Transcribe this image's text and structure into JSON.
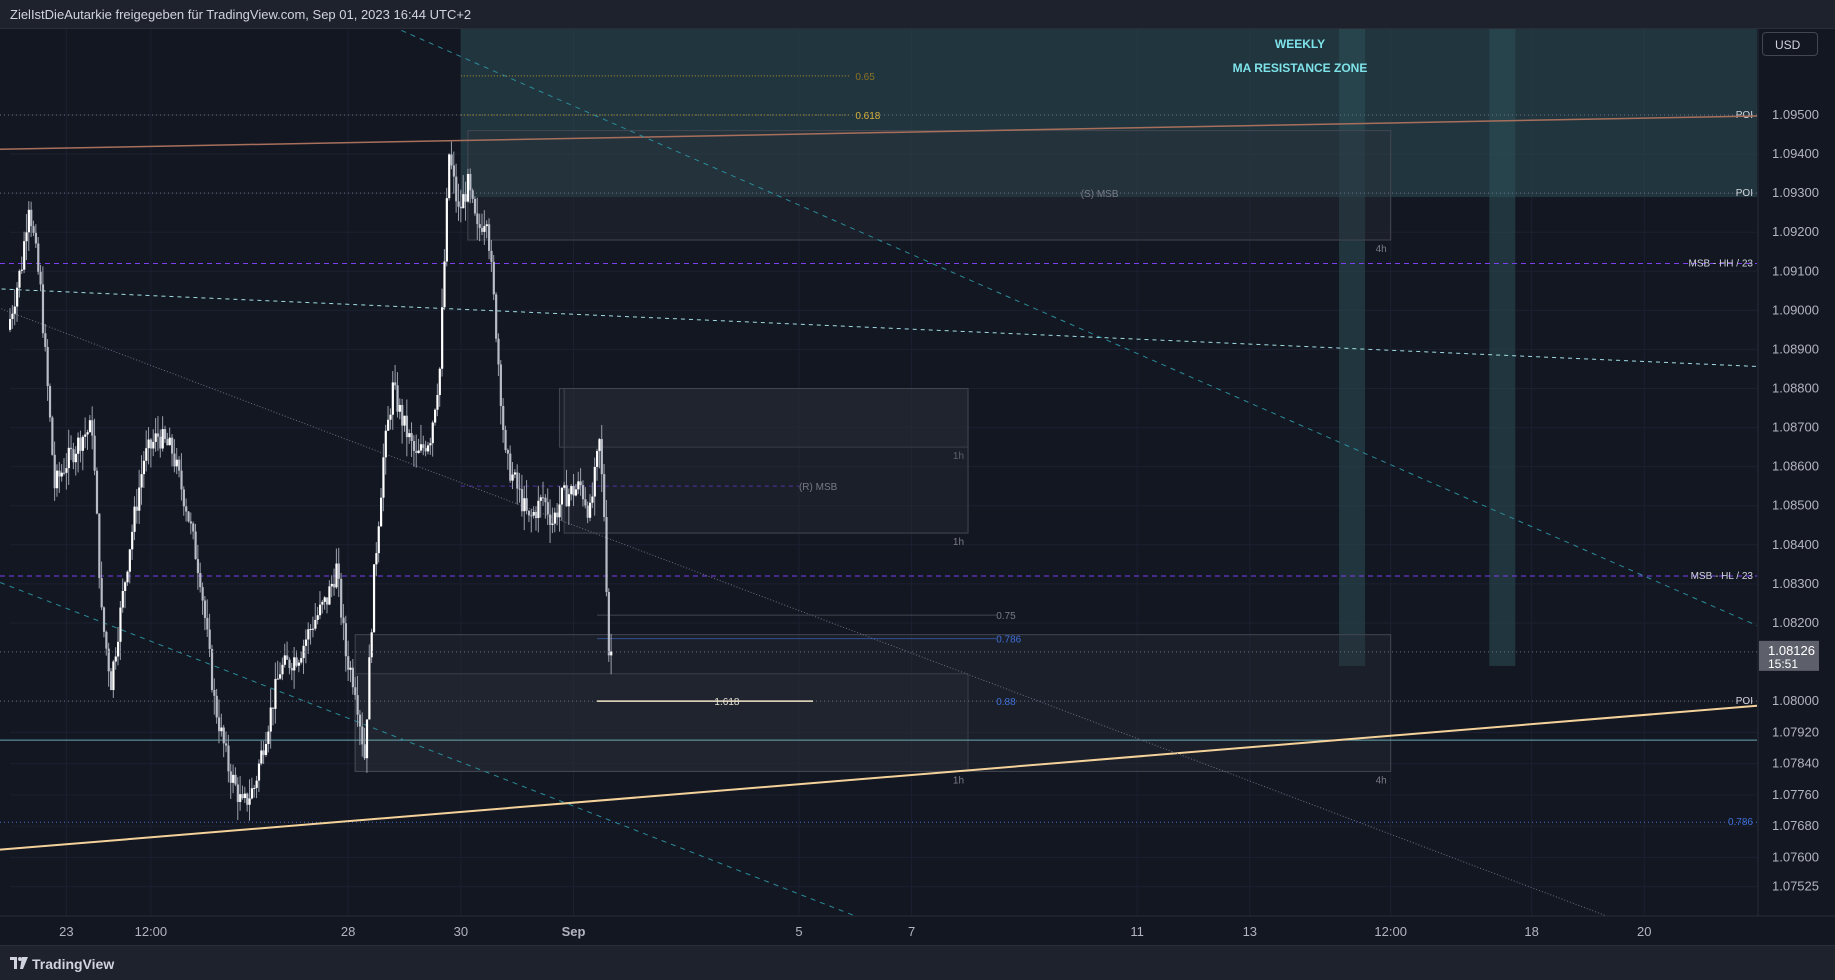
{
  "header": {
    "title": "ZielIstDieAutarkie freigegeben für TradingView.com, Sep 01, 2023 16:44 UTC+2"
  },
  "currency": "USD",
  "footer": {
    "brand": "TradingView"
  },
  "zone": {
    "line1": "WEEKLY",
    "line2": "MA RESISTANCE ZONE"
  },
  "price_badge": {
    "price": "1.08126",
    "countdown": "15:51"
  },
  "colors": {
    "background": "#131722",
    "candle": "#ffffff",
    "zone": "#2e4f55",
    "trendline": "#f5d29a",
    "ma_line": "#a8705c",
    "msb_line": "#7b3ff2",
    "teal_dash": "#2a8c99",
    "fib_blue": "#3f6fd6",
    "fib_gold": "#b5912b"
  },
  "chart_data": {
    "type": "candlestick",
    "symbol_currency": "USD",
    "ylim": [
      1.0745,
      1.0972
    ],
    "y_ticks": [
      "1.09500",
      "1.09400",
      "1.09300",
      "1.09200",
      "1.09100",
      "1.09000",
      "1.08900",
      "1.08800",
      "1.08700",
      "1.08600",
      "1.08500",
      "1.08400",
      "1.08300",
      "1.08200",
      "1.08126",
      "1.08000",
      "1.07920",
      "1.07840",
      "1.07760",
      "1.07680",
      "1.07600",
      "1.07525"
    ],
    "x_ticks": [
      "23",
      "12:00",
      "28",
      "30",
      "Sep",
      "5",
      "7",
      "11",
      "13",
      "12:00",
      "18",
      "20"
    ],
    "x_range": [
      "2023-08-22T00:00",
      "2023-09-22T00:00"
    ],
    "close_path_hourly": [
      {
        "t": "2023-08-22T00:00",
        "p": 1.0895
      },
      {
        "t": "2023-08-22T06:00",
        "p": 1.0912
      },
      {
        "t": "2023-08-22T09:00",
        "p": 1.0928
      },
      {
        "t": "2023-08-22T14:00",
        "p": 1.0905
      },
      {
        "t": "2023-08-22T20:00",
        "p": 1.0855
      },
      {
        "t": "2023-08-23T00:00",
        "p": 1.086
      },
      {
        "t": "2023-08-23T08:00",
        "p": 1.0868
      },
      {
        "t": "2023-08-23T12:00",
        "p": 1.087
      },
      {
        "t": "2023-08-23T16:00",
        "p": 1.0822
      },
      {
        "t": "2023-08-23T20:00",
        "p": 1.0805
      },
      {
        "t": "2023-08-24T04:00",
        "p": 1.084
      },
      {
        "t": "2023-08-24T10:00",
        "p": 1.0862
      },
      {
        "t": "2023-08-24T16:00",
        "p": 1.0868
      },
      {
        "t": "2023-08-24T22:00",
        "p": 1.0864
      },
      {
        "t": "2023-08-25T04:00",
        "p": 1.085
      },
      {
        "t": "2023-08-25T10:00",
        "p": 1.0832
      },
      {
        "t": "2023-08-25T16:00",
        "p": 1.08
      },
      {
        "t": "2023-08-25T22:00",
        "p": 1.0783
      },
      {
        "t": "2023-08-26T04:00",
        "p": 1.0773
      },
      {
        "t": "2023-08-26T09:00",
        "p": 1.0778
      },
      {
        "t": "2023-08-26T14:00",
        "p": 1.0792
      },
      {
        "t": "2023-08-26T20:00",
        "p": 1.0808
      },
      {
        "t": "2023-08-27T04:00",
        "p": 1.0812
      },
      {
        "t": "2023-08-27T10:00",
        "p": 1.082
      },
      {
        "t": "2023-08-27T16:00",
        "p": 1.0826
      },
      {
        "t": "2023-08-27T20:00",
        "p": 1.0834
      },
      {
        "t": "2023-08-28T00:00",
        "p": 1.0812
      },
      {
        "t": "2023-08-28T04:00",
        "p": 1.0804
      },
      {
        "t": "2023-08-28T08:00",
        "p": 1.0786
      },
      {
        "t": "2023-08-28T12:00",
        "p": 1.0832
      },
      {
        "t": "2023-08-28T16:00",
        "p": 1.0862
      },
      {
        "t": "2023-08-28T20:00",
        "p": 1.088
      },
      {
        "t": "2023-08-29T00:00",
        "p": 1.0872
      },
      {
        "t": "2023-08-29T06:00",
        "p": 1.0862
      },
      {
        "t": "2023-08-29T12:00",
        "p": 1.0868
      },
      {
        "t": "2023-08-29T16:00",
        "p": 1.0885
      },
      {
        "t": "2023-08-29T20:00",
        "p": 1.094
      },
      {
        "t": "2023-08-30T00:00",
        "p": 1.0925
      },
      {
        "t": "2023-08-30T04:00",
        "p": 1.0932
      },
      {
        "t": "2023-08-30T08:00",
        "p": 1.092
      },
      {
        "t": "2023-08-30T12:00",
        "p": 1.0925
      },
      {
        "t": "2023-08-30T16:00",
        "p": 1.0895
      },
      {
        "t": "2023-08-30T20:00",
        "p": 1.0862
      },
      {
        "t": "2023-08-31T00:00",
        "p": 1.0856
      },
      {
        "t": "2023-08-31T06:00",
        "p": 1.0846
      },
      {
        "t": "2023-08-31T12:00",
        "p": 1.0852
      },
      {
        "t": "2023-08-31T16:00",
        "p": 1.0846
      },
      {
        "t": "2023-08-31T20:00",
        "p": 1.0852
      },
      {
        "t": "2023-09-01T04:00",
        "p": 1.0855
      },
      {
        "t": "2023-09-01T08:00",
        "p": 1.0848
      },
      {
        "t": "2023-09-01T12:00",
        "p": 1.0866
      },
      {
        "t": "2023-09-01T14:00",
        "p": 1.0848
      },
      {
        "t": "2023-09-01T16:00",
        "p": 1.08126
      }
    ],
    "horizontal_levels": [
      {
        "price": 1.095,
        "label": "POI",
        "style": "dotted"
      },
      {
        "price": 1.093,
        "label": "POI",
        "style": "dotted"
      },
      {
        "price": 1.0912,
        "label": "MSB - HH / 23",
        "style": "dashed-purple"
      },
      {
        "price": 1.0832,
        "label": "MSB - HL / 23",
        "style": "dashed-purple"
      },
      {
        "price": 1.08,
        "label": "POI",
        "style": "dotted"
      },
      {
        "price": 1.0769,
        "label": "0.786",
        "style": "dotted-blue"
      },
      {
        "price": 1.079,
        "label": "",
        "style": "solid-teal"
      }
    ],
    "annotations": [
      {
        "text": "0.65",
        "price": 1.096,
        "x": "2023-09-06T00:00"
      },
      {
        "text": "0.618",
        "price": 1.095,
        "x": "2023-09-06T00:00"
      },
      {
        "text": "(S) MSB",
        "price": 1.093,
        "x": "2023-09-10T00:00"
      },
      {
        "text": "(R) MSB",
        "price": 1.0855,
        "x": "2023-09-05T00:00"
      },
      {
        "text": "0.75",
        "price": 1.0822,
        "x": "2023-09-08T12:00"
      },
      {
        "text": "0.786",
        "price": 1.0816,
        "x": "2023-09-08T12:00"
      },
      {
        "text": "0.88",
        "price": 1.08,
        "x": "2023-09-08T12:00"
      },
      {
        "text": "1.618",
        "price": 1.08,
        "x": "2023-09-03T12:00"
      }
    ],
    "order_blocks": [
      {
        "label": "4h",
        "from": "2023-08-30T03:00",
        "to": "2023-09-15T12:00",
        "top": 1.0946,
        "bottom": 1.0918
      },
      {
        "label": "1h",
        "from": "2023-08-31T18:00",
        "to": "2023-09-08T00:00",
        "top": 1.088,
        "bottom": 1.0865
      },
      {
        "label": "1h",
        "from": "2023-08-31T20:00",
        "to": "2023-09-08T00:00",
        "top": 1.088,
        "bottom": 1.0843
      },
      {
        "label": "1h",
        "from": "2023-08-28T03:00",
        "to": "2023-09-08T00:00",
        "top": 1.0807,
        "bottom": 1.0782
      },
      {
        "label": "4h",
        "from": "2023-08-28T03:00",
        "to": "2023-09-15T12:00",
        "top": 1.0817,
        "bottom": 1.0782
      }
    ]
  }
}
